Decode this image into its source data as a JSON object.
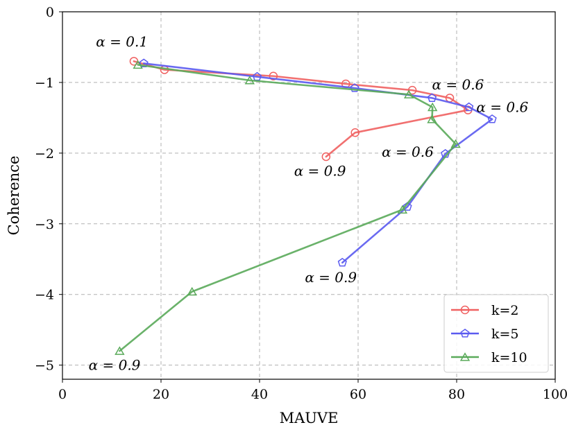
{
  "chart_data": {
    "type": "line",
    "title": "",
    "xlabel": "MAUVE",
    "ylabel": "Coherence",
    "xlim": [
      0,
      100
    ],
    "ylim": [
      -5.2,
      0
    ],
    "xticks": [
      0,
      20,
      40,
      60,
      80,
      100
    ],
    "yticks": [
      0,
      -1,
      -2,
      -3,
      -4,
      -5
    ],
    "xtick_labels": [
      "0",
      "20",
      "40",
      "60",
      "80",
      "100"
    ],
    "ytick_labels": [
      "0",
      "−1",
      "−2",
      "−3",
      "−4",
      "−5"
    ],
    "grid": true,
    "legend_position": "lower-right",
    "series": [
      {
        "name": "k=2",
        "color": "#f06060",
        "marker": "circle",
        "x": [
          14.5,
          20.7,
          42.8,
          57.5,
          71.0,
          78.6,
          82.3,
          59.4,
          53.5
        ],
        "y": [
          -0.7,
          -0.82,
          -0.91,
          -1.02,
          -1.11,
          -1.22,
          -1.39,
          -1.71,
          -2.05
        ]
      },
      {
        "name": "k=5",
        "color": "#5a5af0",
        "marker": "pentagon",
        "x": [
          16.5,
          39.5,
          59.3,
          75.0,
          82.5,
          87.2,
          77.7,
          70.0,
          56.8
        ],
        "y": [
          -0.73,
          -0.92,
          -1.08,
          -1.22,
          -1.35,
          -1.52,
          -2.01,
          -2.76,
          -3.55
        ]
      },
      {
        "name": "k=10",
        "color": "#5aaa5a",
        "marker": "triangle",
        "x": [
          15.3,
          38.0,
          70.3,
          75.1,
          75.0,
          79.8,
          69.0,
          26.3,
          11.6
        ],
        "y": [
          -0.75,
          -0.97,
          -1.17,
          -1.35,
          -1.52,
          -1.87,
          -2.8,
          -3.96,
          -4.8
        ]
      }
    ],
    "annotations": [
      {
        "text": "α = 0.1",
        "x": 6.8,
        "y": -0.42
      },
      {
        "text": "α = 0.6",
        "x": 75.0,
        "y": -1.03
      },
      {
        "text": "α = 0.6",
        "x": 84.0,
        "y": -1.35
      },
      {
        "text": "α = 0.6",
        "x": 64.8,
        "y": -1.98
      },
      {
        "text": "α = 0.9",
        "x": 47.0,
        "y": -2.25
      },
      {
        "text": "α = 0.9",
        "x": 49.2,
        "y": -3.76
      },
      {
        "text": "α = 0.9",
        "x": 5.3,
        "y": -5.0
      }
    ]
  }
}
